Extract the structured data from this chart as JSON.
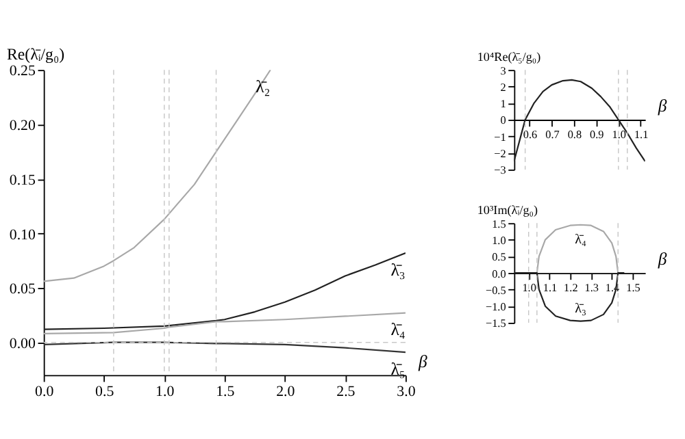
{
  "chart_data": [
    {
      "type": "line",
      "xlabel": "β",
      "ylabel": "Re(λ̄ᵢ/g₀)",
      "xlim": [
        0,
        3
      ],
      "ylim": [
        -0.03,
        0.25
      ],
      "xticks": [
        {
          "value": 0,
          "label": "0.0"
        },
        0.5,
        {
          "value": 1,
          "label": "1.0"
        },
        1.5,
        {
          "value": 2,
          "label": "2.0"
        },
        2.5,
        {
          "value": 3,
          "label": "3.0"
        }
      ],
      "yticks": [
        {
          "value": 0,
          "label": "0.00"
        },
        0.05,
        {
          "value": 0.1,
          "label": "0.10"
        },
        0.15,
        {
          "value": 0.2,
          "label": "0.20"
        },
        0.25
      ],
      "grid": false,
      "legend": false,
      "line_style": "solid",
      "marker": "none",
      "ref_lines": [
        {
          "axis": "x",
          "value": 0.58,
          "color": "#c8c8c8",
          "line_style": "dashed"
        },
        {
          "axis": "x",
          "value": 1.0,
          "color": "#c8c8c8",
          "line_style": "dashed"
        },
        {
          "axis": "x",
          "value": 1.04,
          "color": "#c8c8c8",
          "line_style": "dashed"
        },
        {
          "axis": "x",
          "value": 1.43,
          "color": "#c8c8c8",
          "line_style": "dashed"
        },
        {
          "axis": "y",
          "value": 0,
          "color": "#c8c8c8",
          "line_style": "dashed"
        }
      ],
      "series": [
        {
          "name": "λ̄₂",
          "color": "#a8a8a8",
          "x": [
            0,
            0.25,
            0.5,
            0.58,
            0.75,
            1.0,
            1.25,
            1.43,
            1.6,
            1.75,
            1.88
          ],
          "values": [
            0.056,
            0.059,
            0.07,
            0.075,
            0.087,
            0.113,
            0.145,
            0.175,
            0.203,
            0.228,
            0.25
          ]
        },
        {
          "name": "λ̄₃",
          "color": "#222222",
          "x": [
            0,
            0.5,
            1.0,
            1.43,
            1.5,
            1.75,
            2.0,
            2.25,
            2.5,
            2.75,
            3.0
          ],
          "values": [
            0.012,
            0.013,
            0.015,
            0.02,
            0.021,
            0.028,
            0.037,
            0.048,
            0.061,
            0.071,
            0.082
          ]
        },
        {
          "name": "λ̄₄",
          "color": "#a8a8a8",
          "x": [
            0,
            0.58,
            1.0,
            1.04,
            1.43,
            1.5,
            2.0,
            2.5,
            3.0
          ],
          "values": [
            0.008,
            0.009,
            0.013,
            0.014,
            0.019,
            0.019,
            0.021,
            0.024,
            0.027
          ]
        },
        {
          "name": "λ̄₅",
          "color": "#333333",
          "x": [
            0,
            0.58,
            1.0,
            1.43,
            1.5,
            2.0,
            2.5,
            3.0
          ],
          "values": [
            -0.002,
            0.0,
            0.0,
            -0.001,
            -0.001,
            -0.002,
            -0.005,
            -0.009
          ]
        }
      ]
    },
    {
      "type": "line",
      "xlabel": "β",
      "ylabel": "10⁴Re(λ̄₅/g₀)",
      "xlim": [
        0.53,
        1.12
      ],
      "ylim": [
        -3,
        3
      ],
      "xticks": [
        0.6,
        0.7,
        0.8,
        0.9,
        {
          "value": 1.0,
          "label": "1.0"
        },
        1.1
      ],
      "yticks": [
        {
          "value": -3,
          "label": "−3"
        },
        {
          "value": -2,
          "label": "−2"
        },
        {
          "value": -1,
          "label": "−1"
        },
        0,
        1,
        2,
        3
      ],
      "grid": false,
      "legend": false,
      "line_style": "solid",
      "marker": "none",
      "ref_lines": [
        {
          "axis": "x",
          "value": 0.58,
          "color": "#c8c8c8",
          "line_style": "dashed"
        },
        {
          "axis": "x",
          "value": 1.0,
          "color": "#c8c8c8",
          "line_style": "dashed"
        },
        {
          "axis": "x",
          "value": 1.04,
          "color": "#c8c8c8",
          "line_style": "dashed"
        }
      ],
      "series": [
        {
          "color": "#222222",
          "x": [
            0.53,
            0.56,
            0.58,
            0.62,
            0.66,
            0.7,
            0.75,
            0.79,
            0.83,
            0.88,
            0.92,
            0.96,
            1.0,
            1.04,
            1.08,
            1.12
          ],
          "values": [
            -2.5,
            -1.0,
            0.0,
            1.0,
            1.7,
            2.1,
            2.35,
            2.4,
            2.3,
            1.9,
            1.4,
            0.8,
            0.0,
            -0.8,
            -1.7,
            -2.5
          ]
        }
      ]
    },
    {
      "type": "line",
      "xlabel": "β",
      "ylabel": "10³Im(λ̄ᵢ/g₀)",
      "xlim": [
        0.93,
        1.56
      ],
      "ylim": [
        -1.5,
        1.5
      ],
      "xticks": [
        {
          "value": 1.0,
          "label": "1.0"
        },
        1.1,
        1.2,
        1.3,
        1.4,
        1.5
      ],
      "yticks": [
        {
          "value": -1.5,
          "label": "−1.5"
        },
        {
          "value": -1.0,
          "label": "−1.0"
        },
        {
          "value": -0.5,
          "label": "−0.5"
        },
        {
          "value": 0,
          "label": "0.0"
        },
        0.5,
        {
          "value": 1.0,
          "label": "1.0"
        },
        1.5
      ],
      "grid": false,
      "legend": false,
      "line_style": "solid",
      "marker": "none",
      "ref_lines": [
        {
          "axis": "x",
          "value": 1.0,
          "color": "#c8c8c8",
          "line_style": "dashed"
        },
        {
          "axis": "x",
          "value": 1.04,
          "color": "#c8c8c8",
          "line_style": "dashed"
        },
        {
          "axis": "x",
          "value": 1.43,
          "color": "#c8c8c8",
          "line_style": "dashed"
        }
      ],
      "series": [
        {
          "name": "λ̄₄",
          "color": "#a8a8a8",
          "x": [
            1.04,
            1.05,
            1.08,
            1.13,
            1.2,
            1.25,
            1.3,
            1.36,
            1.4,
            1.42,
            1.43
          ],
          "values": [
            0,
            0.5,
            1.0,
            1.3,
            1.43,
            1.45,
            1.43,
            1.25,
            0.9,
            0.5,
            0
          ]
        },
        {
          "name": "λ̄₃",
          "color": "#222222",
          "x": [
            0.93,
            1.04,
            1.05,
            1.08,
            1.13,
            1.2,
            1.25,
            1.3,
            1.36,
            1.4,
            1.42,
            1.43,
            1.46
          ],
          "values": [
            0,
            0,
            -0.5,
            -1.0,
            -1.3,
            -1.43,
            -1.45,
            -1.43,
            -1.25,
            -0.9,
            -0.5,
            0,
            0
          ]
        }
      ]
    }
  ]
}
